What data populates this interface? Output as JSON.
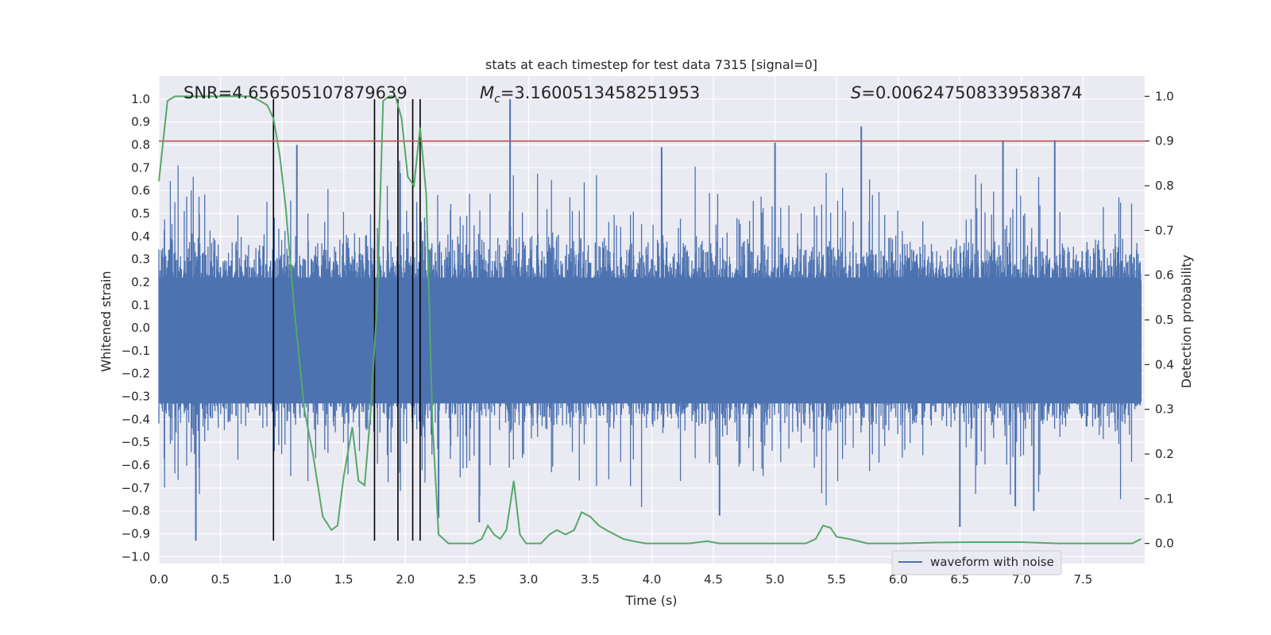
{
  "chart_data": {
    "type": "line",
    "title": "stats at each timestep for test data 7315 [signal=0]",
    "xlabel": "Time (s)",
    "ylabel_left": "Whitened strain",
    "ylabel_right": "Detection probability",
    "xlim": [
      0.0,
      8.0
    ],
    "ylim_left": [
      -1.03,
      1.1
    ],
    "ylim_right": [
      -0.045,
      1.045
    ],
    "x_ticks": [
      "0.0",
      "0.5",
      "1.0",
      "1.5",
      "2.0",
      "2.5",
      "3.0",
      "3.5",
      "4.0",
      "4.5",
      "5.0",
      "5.5",
      "6.0",
      "6.5",
      "7.0",
      "7.5"
    ],
    "y_ticks_left": [
      "1.0",
      "0.9",
      "0.8",
      "0.7",
      "0.6",
      "0.5",
      "0.4",
      "0.3",
      "0.2",
      "0.1",
      "0.0",
      "−0.1",
      "−0.2",
      "−0.3",
      "−0.4",
      "−0.5",
      "−0.6",
      "−0.7",
      "−0.8",
      "−0.9",
      "−1.0"
    ],
    "y_ticks_right": [
      "1.0",
      "0.9",
      "0.8",
      "0.7",
      "0.6",
      "0.5",
      "0.4",
      "0.3",
      "0.2",
      "0.1",
      "0.0"
    ],
    "annotations": {
      "snr": "SNR=4.656505107879639",
      "mc_symbol": "M",
      "mc_sub": "c",
      "mc_value": "=3.1600513458251953",
      "s_symbol": "S",
      "s_value": "=0.006247508339583874"
    },
    "threshold_right": 0.9,
    "vertical_lines_x": [
      0.93,
      1.75,
      1.94,
      2.06,
      2.12
    ],
    "vertical_lines_ylim_left": [
      -0.93,
      1.0
    ],
    "series": [
      {
        "name": "waveform with noise",
        "axis": "left",
        "kind": "noise",
        "typical_envelope": 0.42,
        "spikes": [
          {
            "x": 0.3,
            "y": -0.93
          },
          {
            "x": 2.85,
            "y": 1.0
          },
          {
            "x": 5.7,
            "y": 0.88
          },
          {
            "x": 6.85,
            "y": 0.82
          },
          {
            "x": 7.27,
            "y": 0.82
          },
          {
            "x": 5.0,
            "y": 0.81
          },
          {
            "x": 4.08,
            "y": 0.79
          },
          {
            "x": 1.12,
            "y": 0.8
          },
          {
            "x": 6.5,
            "y": -0.87
          },
          {
            "x": 4.55,
            "y": -0.82
          },
          {
            "x": 2.27,
            "y": -0.83
          },
          {
            "x": 6.95,
            "y": -0.78
          },
          {
            "x": 7.1,
            "y": -0.8
          },
          {
            "x": 2.6,
            "y": -0.85
          }
        ]
      },
      {
        "name": "",
        "axis": "right",
        "x": [
          0.0,
          0.07,
          0.13,
          0.2,
          0.4,
          0.6,
          0.75,
          0.82,
          0.88,
          0.93,
          0.98,
          1.03,
          1.1,
          1.18,
          1.25,
          1.33,
          1.4,
          1.45,
          1.5,
          1.57,
          1.62,
          1.67,
          1.72,
          1.77,
          1.82,
          1.87,
          1.92,
          1.97,
          2.02,
          2.07,
          2.12,
          2.17,
          2.22,
          2.27,
          2.35,
          2.45,
          2.55,
          2.62,
          2.67,
          2.72,
          2.77,
          2.82,
          2.88,
          2.93,
          2.98,
          3.03,
          3.1,
          3.17,
          3.23,
          3.3,
          3.37,
          3.43,
          3.5,
          3.57,
          3.63,
          3.7,
          3.77,
          3.85,
          3.95,
          4.1,
          4.3,
          4.45,
          4.55,
          4.7,
          4.9,
          5.1,
          5.25,
          5.33,
          5.39,
          5.45,
          5.5,
          5.6,
          5.75,
          6.0,
          6.3,
          6.6,
          6.8,
          7.0,
          7.3,
          7.6,
          7.9,
          7.97
        ],
        "y": [
          0.81,
          0.99,
          1.0,
          1.0,
          1.0,
          1.0,
          1.0,
          0.99,
          0.98,
          0.95,
          0.87,
          0.75,
          0.52,
          0.3,
          0.2,
          0.06,
          0.03,
          0.04,
          0.15,
          0.26,
          0.14,
          0.13,
          0.3,
          0.53,
          0.99,
          1.0,
          1.0,
          0.95,
          0.82,
          0.8,
          0.93,
          0.78,
          0.27,
          0.02,
          0.0,
          0.0,
          0.0,
          0.01,
          0.04,
          0.02,
          0.01,
          0.03,
          0.14,
          0.02,
          0.0,
          0.0,
          0.0,
          0.02,
          0.03,
          0.02,
          0.03,
          0.07,
          0.06,
          0.04,
          0.03,
          0.02,
          0.01,
          0.005,
          0.0,
          0.0,
          0.0,
          0.005,
          0.0,
          0.0,
          0.0,
          0.0,
          0.0,
          0.01,
          0.04,
          0.035,
          0.015,
          0.01,
          0.0,
          0.0,
          0.002,
          0.003,
          0.003,
          0.003,
          0.0,
          0.0,
          0.0,
          0.01
        ]
      }
    ],
    "legend_placement": "lower-right",
    "grid": true,
    "colors": {
      "plot_bg": "#eaeaf2",
      "grid": "#ffffff",
      "waveform": "#4c72b0",
      "probability": "#55a868",
      "threshold": "#c44e52",
      "vlines": "#000000",
      "text": "#262626"
    }
  }
}
